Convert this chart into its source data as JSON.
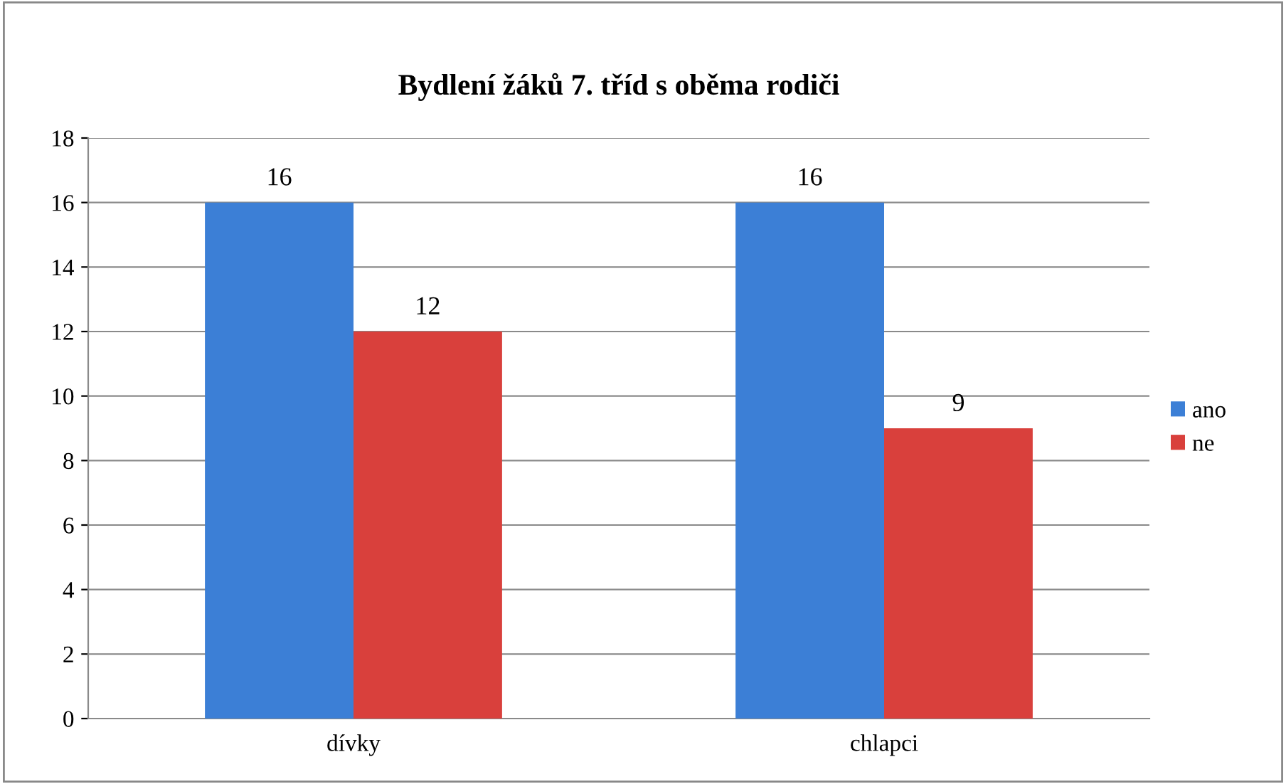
{
  "chart_data": {
    "type": "bar",
    "title": "Bydlení žáků 7. tříd s oběma rodiči",
    "categories": [
      "dívky",
      "chlapci"
    ],
    "series": [
      {
        "name": "ano",
        "color": "#3c7fd6",
        "values": [
          16,
          16
        ]
      },
      {
        "name": "ne",
        "color": "#d9403c",
        "values": [
          12,
          9
        ]
      }
    ],
    "ylim": [
      0,
      18
    ],
    "yticks": [
      0,
      2,
      4,
      6,
      8,
      10,
      12,
      14,
      16,
      18
    ],
    "grid": "y",
    "legend": "right",
    "data_labels": true
  }
}
